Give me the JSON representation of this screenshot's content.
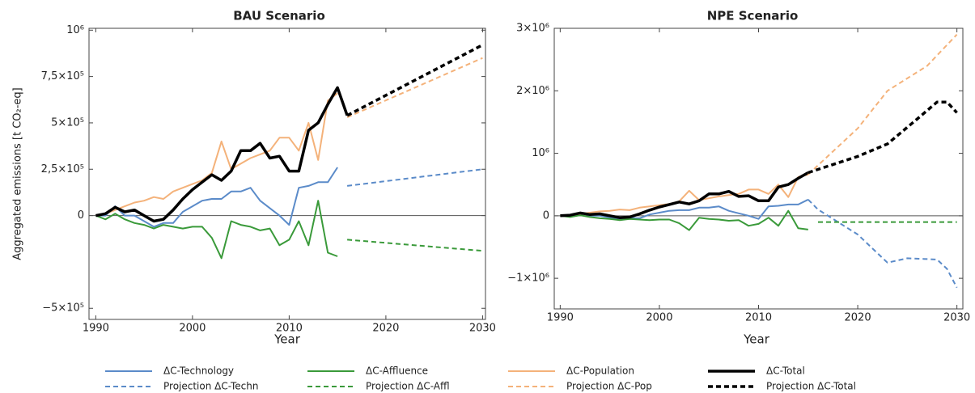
{
  "chart_data": [
    {
      "type": "line",
      "title": "BAU Scenario",
      "ylabel": "Aggregated emissions [t CO₂-eq]",
      "xlabel": "Year",
      "xlim": [
        1989.3,
        2030.3
      ],
      "xticks": [
        1990,
        2000,
        2010,
        2020,
        2030
      ],
      "ylim": [
        -560000,
        1010000
      ],
      "yticks": [
        {
          "value": -500000,
          "label": "−5×10⁵"
        },
        0,
        {
          "value": 250000,
          "label": "2,5×10⁵"
        },
        {
          "value": 500000,
          "label": "5×10⁵"
        },
        {
          "value": 750000,
          "label": "7,5×10⁵"
        },
        {
          "value": 1000000,
          "label": "10⁶"
        }
      ],
      "series": [
        {
          "name": "ΔC-Technology",
          "color": "#5b8bc9",
          "linestyle": "solid",
          "x": [
            1990,
            1991,
            1992,
            1993,
            1994,
            1995,
            1996,
            1997,
            1998,
            1999,
            2000,
            2001,
            2002,
            2003,
            2004,
            2005,
            2006,
            2007,
            2008,
            2009,
            2010,
            2011,
            2012,
            2013,
            2014,
            2015
          ],
          "values": [
            0,
            0,
            50000,
            0,
            0,
            -30000,
            -60000,
            -40000,
            -40000,
            20000,
            50000,
            80000,
            90000,
            90000,
            130000,
            130000,
            150000,
            80000,
            40000,
            0,
            -50000,
            150000,
            160000,
            180000,
            180000,
            260000
          ]
        },
        {
          "name": "ΔC-Affluence",
          "color": "#3a9a3a",
          "linestyle": "solid",
          "x": [
            1990,
            1991,
            1992,
            1993,
            1994,
            1995,
            1996,
            1997,
            1998,
            1999,
            2000,
            2001,
            2002,
            2003,
            2004,
            2005,
            2006,
            2007,
            2008,
            2009,
            2010,
            2011,
            2012,
            2013,
            2014,
            2015
          ],
          "values": [
            0,
            -20000,
            10000,
            -20000,
            -40000,
            -50000,
            -70000,
            -50000,
            -60000,
            -70000,
            -60000,
            -60000,
            -120000,
            -230000,
            -30000,
            -50000,
            -60000,
            -80000,
            -70000,
            -160000,
            -130000,
            -30000,
            -160000,
            80000,
            -200000,
            -220000
          ]
        },
        {
          "name": "ΔC-Population",
          "color": "#f4b27a",
          "linestyle": "solid",
          "x": [
            1990,
            1991,
            1992,
            1993,
            1994,
            1995,
            1996,
            1997,
            1998,
            1999,
            2000,
            2001,
            2002,
            2003,
            2004,
            2005,
            2006,
            2007,
            2008,
            2009,
            2010,
            2011,
            2012,
            2013,
            2014,
            2015
          ],
          "values": [
            0,
            10000,
            30000,
            50000,
            70000,
            80000,
            100000,
            90000,
            130000,
            150000,
            170000,
            190000,
            230000,
            400000,
            250000,
            280000,
            310000,
            330000,
            350000,
            420000,
            420000,
            350000,
            500000,
            300000,
            620000,
            660000
          ]
        },
        {
          "name": "ΔC-Total",
          "color": "#000000",
          "linestyle": "solid",
          "x": [
            1990,
            1991,
            1992,
            1993,
            1994,
            1995,
            1996,
            1997,
            1998,
            1999,
            2000,
            2001,
            2002,
            2003,
            2004,
            2005,
            2006,
            2007,
            2008,
            2009,
            2010,
            2011,
            2012,
            2013,
            2014,
            2015,
            2016
          ],
          "values": [
            0,
            10000,
            45000,
            20000,
            30000,
            0,
            -30000,
            -20000,
            30000,
            90000,
            140000,
            180000,
            220000,
            190000,
            240000,
            350000,
            350000,
            390000,
            310000,
            320000,
            240000,
            240000,
            460000,
            500000,
            600000,
            690000,
            540000
          ]
        },
        {
          "name": "Projection ΔC-Techn",
          "color": "#5b8bc9",
          "linestyle": "dashed",
          "x": [
            2016,
            2030
          ],
          "values": [
            160000,
            250000
          ]
        },
        {
          "name": "Projection ΔC-Affl",
          "color": "#3a9a3a",
          "linestyle": "dashed",
          "x": [
            2016,
            2030
          ],
          "values": [
            -130000,
            -190000
          ]
        },
        {
          "name": "Projection ΔC-Pop",
          "color": "#f4b27a",
          "linestyle": "dashed",
          "x": [
            2016,
            2030
          ],
          "values": [
            530000,
            850000
          ]
        },
        {
          "name": "Projection ΔC-Total",
          "color": "#000000",
          "linestyle": "dashed",
          "x": [
            2016,
            2030
          ],
          "values": [
            540000,
            920000
          ]
        }
      ]
    },
    {
      "type": "line",
      "title": "NPE Scenario",
      "xlabel": "Year",
      "xlim": [
        1989.4,
        2030.6
      ],
      "xticks": [
        1990,
        2000,
        2010,
        2020,
        2030
      ],
      "ylim": [
        -1490000,
        3000000
      ],
      "yticks": [
        {
          "value": -1000000,
          "label": "−1×10⁶"
        },
        0,
        {
          "value": 1000000,
          "label": "10⁶"
        },
        {
          "value": 2000000,
          "label": "2×10⁶"
        },
        {
          "value": 3000000,
          "label": "3×10⁶"
        }
      ],
      "series": [
        {
          "name": "ΔC-Technology",
          "color": "#5b8bc9",
          "linestyle": "solid",
          "x": [
            1990,
            1991,
            1992,
            1993,
            1994,
            1995,
            1996,
            1997,
            1998,
            1999,
            2000,
            2001,
            2002,
            2003,
            2004,
            2005,
            2006,
            2007,
            2008,
            2009,
            2010,
            2011,
            2012,
            2013,
            2014,
            2015
          ],
          "values": [
            0,
            0,
            50000,
            0,
            0,
            -30000,
            -60000,
            -40000,
            -40000,
            20000,
            50000,
            80000,
            90000,
            90000,
            130000,
            130000,
            150000,
            80000,
            40000,
            0,
            -50000,
            150000,
            160000,
            180000,
            180000,
            260000
          ]
        },
        {
          "name": "ΔC-Affluence",
          "color": "#3a9a3a",
          "linestyle": "solid",
          "x": [
            1990,
            1991,
            1992,
            1993,
            1994,
            1995,
            1996,
            1997,
            1998,
            1999,
            2000,
            2001,
            2002,
            2003,
            2004,
            2005,
            2006,
            2007,
            2008,
            2009,
            2010,
            2011,
            2012,
            2013,
            2014,
            2015
          ],
          "values": [
            0,
            -20000,
            10000,
            -20000,
            -40000,
            -50000,
            -70000,
            -50000,
            -60000,
            -70000,
            -60000,
            -60000,
            -120000,
            -230000,
            -30000,
            -50000,
            -60000,
            -80000,
            -70000,
            -160000,
            -130000,
            -30000,
            -160000,
            80000,
            -200000,
            -220000
          ]
        },
        {
          "name": "ΔC-Population",
          "color": "#f4b27a",
          "linestyle": "solid",
          "x": [
            1990,
            1991,
            1992,
            1993,
            1994,
            1995,
            1996,
            1997,
            1998,
            1999,
            2000,
            2001,
            2002,
            2003,
            2004,
            2005,
            2006,
            2007,
            2008,
            2009,
            2010,
            2011,
            2012,
            2013,
            2014,
            2015
          ],
          "values": [
            0,
            10000,
            30000,
            50000,
            70000,
            80000,
            100000,
            90000,
            130000,
            150000,
            170000,
            190000,
            230000,
            400000,
            250000,
            280000,
            310000,
            330000,
            350000,
            420000,
            420000,
            350000,
            500000,
            300000,
            620000,
            660000
          ]
        },
        {
          "name": "ΔC-Total",
          "color": "#000000",
          "linestyle": "solid",
          "x": [
            1990,
            1991,
            1992,
            1993,
            1994,
            1995,
            1996,
            1997,
            1998,
            1999,
            2000,
            2001,
            2002,
            2003,
            2004,
            2005,
            2006,
            2007,
            2008,
            2009,
            2010,
            2011,
            2012,
            2013,
            2014,
            2015
          ],
          "values": [
            0,
            10000,
            45000,
            20000,
            30000,
            0,
            -30000,
            -20000,
            30000,
            90000,
            140000,
            180000,
            220000,
            190000,
            240000,
            350000,
            350000,
            390000,
            310000,
            320000,
            240000,
            240000,
            460000,
            500000,
            600000,
            690000
          ]
        },
        {
          "name": "Projection ΔC-Techn",
          "color": "#5b8bc9",
          "linestyle": "dashed",
          "x": [
            2015,
            2016,
            2017,
            2020,
            2023,
            2025,
            2028,
            2029,
            2030
          ],
          "values": [
            260000,
            100000,
            0,
            -300000,
            -750000,
            -680000,
            -700000,
            -850000,
            -1150000
          ]
        },
        {
          "name": "Projection ΔC-Affl",
          "color": "#3a9a3a",
          "linestyle": "dashed",
          "x": [
            2016,
            2030
          ],
          "values": [
            -100000,
            -100000
          ]
        },
        {
          "name": "Projection ΔC-Pop",
          "color": "#f4b27a",
          "linestyle": "dashed",
          "x": [
            2015,
            2020,
            2023,
            2027,
            2030
          ],
          "values": [
            660000,
            1400000,
            2000000,
            2400000,
            2900000
          ]
        },
        {
          "name": "Projection ΔC-Total",
          "color": "#000000",
          "linestyle": "dashed",
          "x": [
            2015,
            2020,
            2023,
            2026,
            2028,
            2029,
            2030
          ],
          "values": [
            690000,
            950000,
            1150000,
            1550000,
            1820000,
            1820000,
            1650000
          ]
        }
      ]
    }
  ]
}
